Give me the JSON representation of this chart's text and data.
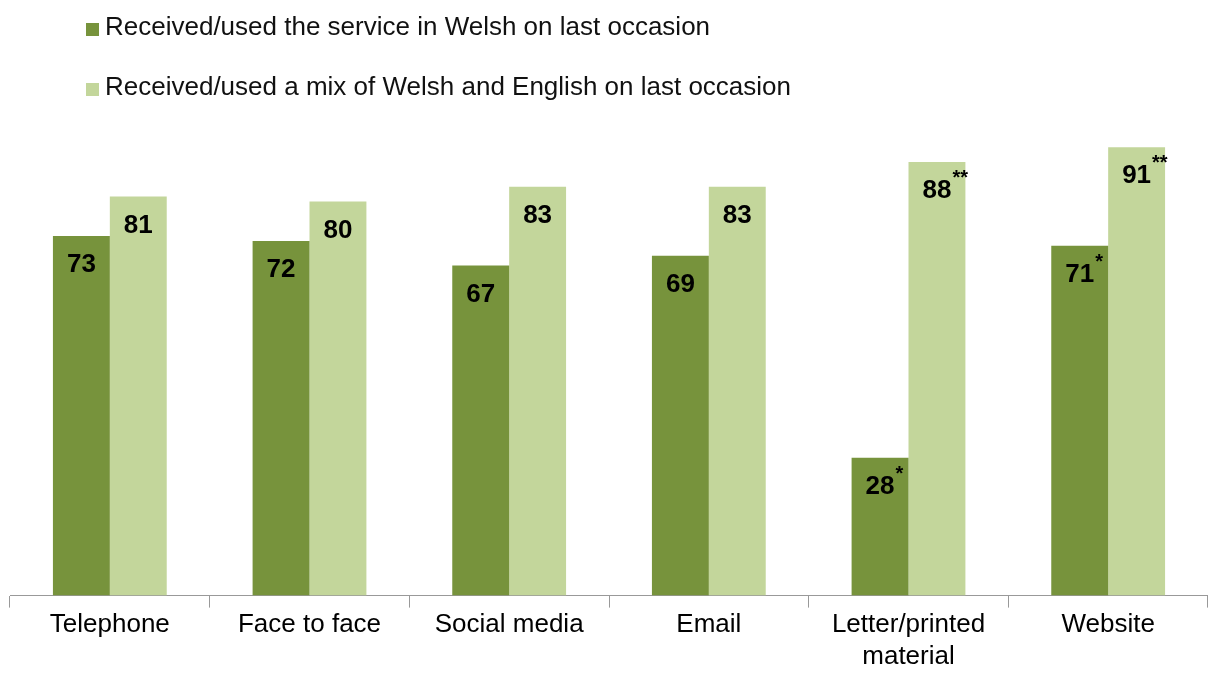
{
  "chart_data": {
    "type": "bar",
    "categories": [
      "Telephone",
      "Face to face",
      "Social media",
      "Email",
      "Letter/printed material",
      "Website"
    ],
    "series": [
      {
        "name": "Received/used the service in Welsh on last occasion",
        "color": "#77933c",
        "values": [
          73,
          72,
          67,
          69,
          28,
          71
        ],
        "value_labels": [
          "73",
          "72",
          "67",
          "69",
          "28$^{*}$",
          "71$^{*}$"
        ]
      },
      {
        "name": "Received/used a mix of Welsh and English on last occasion",
        "color": "#c3d69b",
        "values": [
          81,
          80,
          83,
          83,
          88,
          91
        ],
        "value_labels": [
          "81",
          "80",
          "83",
          "83",
          "88$^{**}$",
          "91$^{**}$"
        ]
      }
    ],
    "legend": "top left"
  }
}
